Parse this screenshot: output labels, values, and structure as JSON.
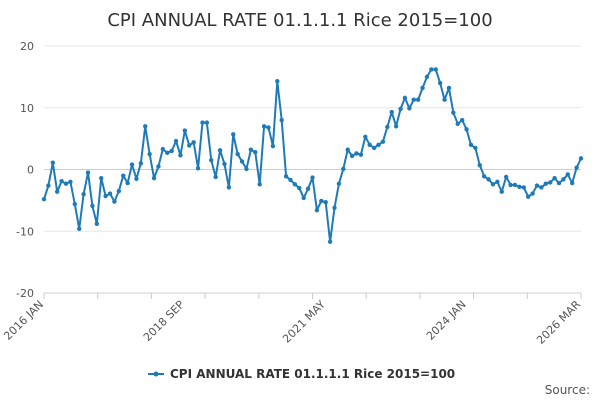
{
  "chart_data": {
    "type": "line",
    "title": "CPI ANNUAL RATE 01.1.1.1 Rice 2015=100",
    "xlabel": "",
    "ylabel": "",
    "ylim": [
      -20,
      20
    ],
    "yticks": [
      20,
      10,
      0,
      -10,
      -20
    ],
    "xlim": [
      0,
      122
    ],
    "xticks": [
      {
        "label": "2016 JAN",
        "index": 0
      },
      {
        "label": "2018 SEP",
        "index": 32
      },
      {
        "label": "2021 MAY",
        "index": 64
      },
      {
        "label": "2024 JAN",
        "index": 96
      },
      {
        "label": "2026 MAR",
        "index": 122
      }
    ],
    "series": [
      {
        "name": "CPI ANNUAL RATE 01.1.1.1 Rice 2015=100",
        "color": "#1f7bb8",
        "values": [
          -4.8,
          -2.6,
          1.1,
          -3.6,
          -1.9,
          -2.3,
          -2.0,
          -5.6,
          -9.6,
          -4.0,
          -0.5,
          -5.9,
          -8.8,
          -1.4,
          -4.3,
          -3.9,
          -5.2,
          -3.5,
          -1.0,
          -2.2,
          0.8,
          -1.5,
          1.0,
          7.0,
          2.5,
          -1.4,
          0.5,
          3.3,
          2.7,
          3.0,
          4.6,
          2.3,
          6.3,
          3.9,
          4.4,
          0.2,
          7.6,
          7.6,
          1.5,
          -1.2,
          3.1,
          0.9,
          -2.9,
          5.7,
          2.5,
          1.3,
          0.1,
          3.2,
          2.8,
          -2.4,
          7.0,
          6.8,
          3.8,
          14.3,
          8.0,
          -1.1,
          -1.7,
          -2.4,
          -3.0,
          -4.6,
          -3.1,
          -1.3,
          -6.6,
          -5.1,
          -5.3,
          -11.7,
          -6.2,
          -2.3,
          0.1,
          3.2,
          2.2,
          2.6,
          2.4,
          5.3,
          4.0,
          3.5,
          4.0,
          4.5,
          6.9,
          9.3,
          7.0,
          9.8,
          11.6,
          9.9,
          11.3,
          11.3,
          13.2,
          15.0,
          16.2,
          16.2,
          14.0,
          11.3,
          13.2,
          9.2,
          7.4,
          8.0,
          6.5,
          4.0,
          3.5,
          0.7,
          -1.1,
          -1.6,
          -2.4,
          -2.0,
          -3.6,
          -1.2,
          -2.5,
          -2.5,
          -2.8,
          -2.9,
          -4.4,
          -3.9,
          -2.6,
          -2.9,
          -2.3,
          -2.1,
          -1.4,
          -2.2,
          -1.6,
          -0.8,
          -2.2,
          0.3,
          1.8
        ]
      }
    ],
    "legend": {
      "position": "bottom",
      "label": "CPI ANNUAL RATE 01.1.1.1 Rice 2015=100"
    },
    "grid": true
  },
  "footer": {
    "source_label": "Source:"
  }
}
